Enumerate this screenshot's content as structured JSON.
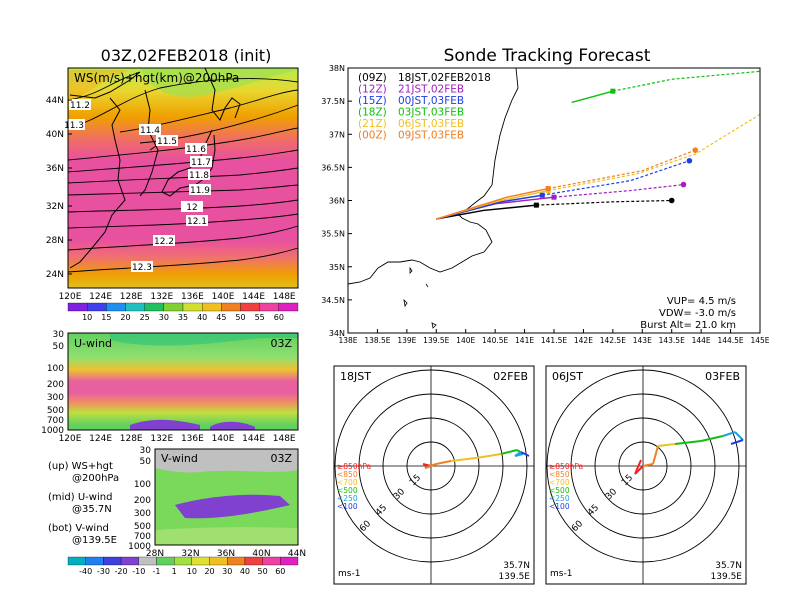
{
  "left_title": "03Z,02FEB2018 (init)",
  "right_title": "Sonde Tracking Forecast",
  "map_panel": {
    "label": "WS(m/s)+hgt(km)@200hPa",
    "y_ticks": [
      "44N",
      "40N",
      "36N",
      "32N",
      "28N",
      "24N"
    ],
    "x_ticks": [
      "120E",
      "124E",
      "128E",
      "132E",
      "136E",
      "140E",
      "144E",
      "148E"
    ],
    "contour_labels": [
      "11.2",
      "11.3",
      "11.4",
      "11.5",
      "11.6",
      "11.7",
      "11.8",
      "11.9",
      "12",
      "12.1",
      "12.2",
      "12.3"
    ],
    "colorbar": [
      "10",
      "15",
      "20",
      "25",
      "30",
      "35",
      "40",
      "45",
      "50",
      "55",
      "60"
    ]
  },
  "uwind_panel": {
    "label": "U-wind",
    "time": "03Z",
    "y_ticks": [
      "30",
      "50",
      "100",
      "200",
      "300",
      "500",
      "700",
      "1000"
    ],
    "x_ticks": [
      "120E",
      "124E",
      "128E",
      "132E",
      "136E",
      "140E",
      "144E",
      "148E"
    ]
  },
  "vwind_panel": {
    "label": "V-wind",
    "time": "03Z",
    "y_ticks": [
      "30",
      "50",
      "100",
      "200",
      "300",
      "500",
      "700",
      "1000"
    ],
    "x_ticks": [
      "28N",
      "32N",
      "36N",
      "40N",
      "44N"
    ]
  },
  "notes": {
    "up1": "(up) WS+hgt",
    "up2": "@200hPa",
    "mid1": "(mid) U-wind",
    "mid2": "@35.7N",
    "bot1": "(bot) V-wind",
    "bot2": "@139.5E"
  },
  "bottom_colorbar": [
    "-40",
    "-30",
    "-20",
    "-10",
    "-1",
    "1",
    "10",
    "20",
    "30",
    "40",
    "50",
    "60"
  ],
  "tracking": {
    "y_ticks": [
      "38N",
      "37.5N",
      "37N",
      "36.5N",
      "36N",
      "35.5N",
      "35N",
      "34.5N",
      "34N"
    ],
    "x_ticks": [
      "138E",
      "138.5E",
      "139E",
      "139.5E",
      "140E",
      "140.5E",
      "141E",
      "141.5E",
      "142E",
      "142.5E",
      "143E",
      "143.5E",
      "144E",
      "144.5E",
      "145E"
    ],
    "legend": [
      {
        "run": "(09Z)",
        "time": "18JST,02FEB2018",
        "color": "#000000"
      },
      {
        "run": "(12Z)",
        "time": "21JST,02FEB",
        "color": "#a020c0"
      },
      {
        "run": "(15Z)",
        "time": "00JST,03FEB",
        "color": "#2040e0"
      },
      {
        "run": "(18Z)",
        "time": "03JST,03FEB",
        "color": "#10c010"
      },
      {
        "run": "(21Z)",
        "time": "06JST,03FEB",
        "color": "#f0c020"
      },
      {
        "run": "(00Z)",
        "time": "09JST,03FEB",
        "color": "#f08020"
      }
    ],
    "vup": "VUP= 4.5 m/s",
    "vdw": "VDW= -3.0 m/s",
    "burst": "Burst Alt= 21.0 km"
  },
  "hodo_left": {
    "time": "18JST",
    "date": "02FEB",
    "ring_labels": [
      "15",
      "30",
      "45",
      "60"
    ],
    "legend": [
      {
        "text": "≥850hPa",
        "color": "#ff2020"
      },
      {
        "text": "<850",
        "color": "#f08020"
      },
      {
        "text": "<700",
        "color": "#f0c020"
      },
      {
        "text": "<500",
        "color": "#10c010"
      },
      {
        "text": "<250",
        "color": "#20a0e0"
      },
      {
        "text": "<100",
        "color": "#2040e0"
      }
    ],
    "units": "ms-1",
    "lat": "35.7N",
    "lon": "139.5E"
  },
  "hodo_right": {
    "time": "06JST",
    "date": "03FEB",
    "ring_labels": [
      "15",
      "30",
      "45",
      "60"
    ],
    "legend": [
      {
        "text": "≥850hPa",
        "color": "#ff2020"
      },
      {
        "text": "<850",
        "color": "#f08020"
      },
      {
        "text": "<700",
        "color": "#f0c020"
      },
      {
        "text": "<500",
        "color": "#10c010"
      },
      {
        "text": "<250",
        "color": "#20a0e0"
      },
      {
        "text": "<100",
        "color": "#2040e0"
      }
    ],
    "units": "ms-1",
    "lat": "35.7N",
    "lon": "139.5E"
  },
  "chart_data": [
    {
      "type": "line",
      "title": "Sonde Tracking Forecast",
      "xlim": [
        138,
        145
      ],
      "ylim": [
        34,
        38
      ],
      "series": [
        {
          "name": "(09Z) 18JST,02FEB2018",
          "color": "#000000",
          "points": [
            [
              139.5,
              35.72
            ],
            [
              140.3,
              35.85
            ],
            [
              141.2,
              35.93
            ],
            [
              142.5,
              35.98
            ],
            [
              143.5,
              36.0
            ]
          ]
        },
        {
          "name": "(12Z) 21JST,02FEB",
          "color": "#a020c0",
          "points": [
            [
              139.5,
              35.72
            ],
            [
              140.5,
              35.95
            ],
            [
              141.5,
              36.05
            ],
            [
              142.8,
              36.15
            ],
            [
              143.7,
              36.24
            ]
          ]
        },
        {
          "name": "(15Z) 00JST,03FEB",
          "color": "#2040e0",
          "points": [
            [
              139.5,
              35.72
            ],
            [
              140.6,
              35.98
            ],
            [
              141.3,
              36.08
            ],
            [
              142.8,
              36.3
            ],
            [
              143.8,
              36.6
            ]
          ]
        },
        {
          "name": "(18Z) 03JST,03FEB",
          "color": "#10c010",
          "points": [
            [
              141.8,
              37.48
            ],
            [
              142.5,
              37.65
            ],
            [
              143.5,
              37.83
            ],
            [
              145.0,
              37.95
            ]
          ]
        },
        {
          "name": "(21Z) 06JST,03FEB",
          "color": "#f0c020",
          "points": [
            [
              139.5,
              35.72
            ],
            [
              140.5,
              35.98
            ],
            [
              141.4,
              36.15
            ],
            [
              142.9,
              36.4
            ],
            [
              143.9,
              36.7
            ],
            [
              145.0,
              37.3
            ]
          ]
        },
        {
          "name": "(00Z) 09JST,03FEB",
          "color": "#f08020",
          "points": [
            [
              139.5,
              35.72
            ],
            [
              140.7,
              36.05
            ],
            [
              141.4,
              36.18
            ],
            [
              143.0,
              36.45
            ],
            [
              143.9,
              36.76
            ]
          ]
        }
      ]
    }
  ]
}
